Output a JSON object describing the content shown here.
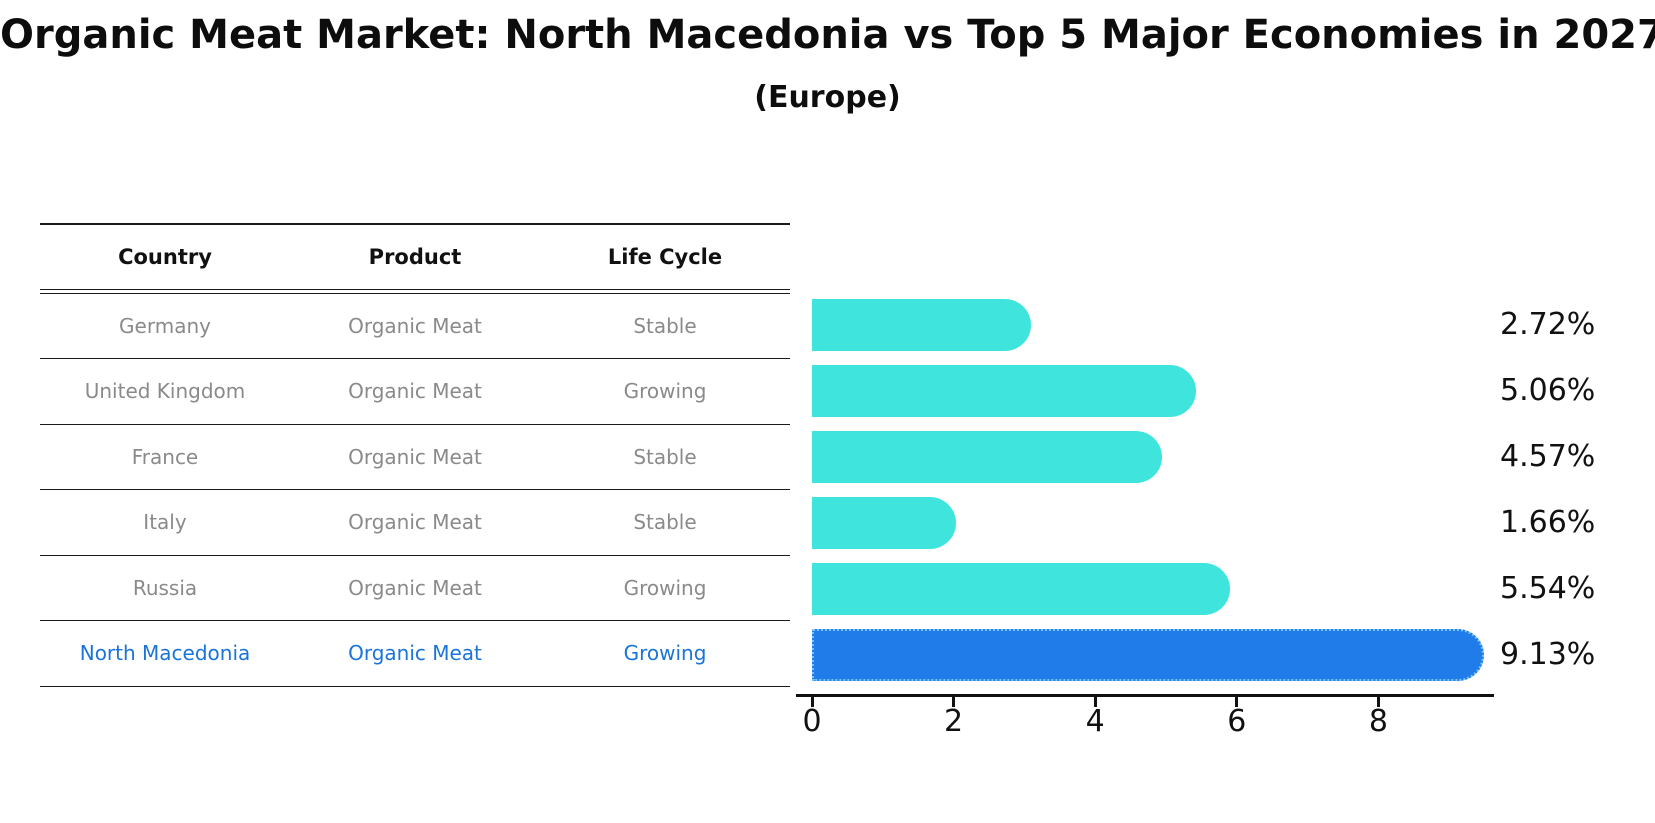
{
  "header": {
    "title": "Organic Meat Market: North Macedonia vs Top 5 Major Economies in 2027",
    "subtitle": "(Europe)"
  },
  "table": {
    "headers": [
      "Country",
      "Product",
      "Life Cycle"
    ],
    "rows": [
      {
        "country": "Germany",
        "product": "Organic Meat",
        "life_cycle": "Stable",
        "highlighted": false
      },
      {
        "country": "United Kingdom",
        "product": "Organic Meat",
        "life_cycle": "Growing",
        "highlighted": false
      },
      {
        "country": "France",
        "product": "Organic Meat",
        "life_cycle": "Stable",
        "highlighted": false
      },
      {
        "country": "Italy",
        "product": "Organic Meat",
        "life_cycle": "Stable",
        "highlighted": false
      },
      {
        "country": "Russia",
        "product": "Organic Meat",
        "life_cycle": "Growing",
        "highlighted": false
      },
      {
        "country": "North Macedonia",
        "product": "Organic Meat",
        "life_cycle": "Growing",
        "highlighted": true
      }
    ]
  },
  "chart_data": {
    "type": "bar",
    "orientation": "horizontal",
    "title": "Organic Meat Market: North Macedonia vs Top 5 Major Economies in 2027",
    "subtitle": "(Europe)",
    "categories": [
      "Germany",
      "United Kingdom",
      "France",
      "Italy",
      "Russia",
      "North Macedonia"
    ],
    "values": [
      2.72,
      5.06,
      4.57,
      1.66,
      5.54,
      9.13
    ],
    "value_labels": [
      "2.72%",
      "5.06%",
      "4.57%",
      "1.66%",
      "5.54%",
      "9.13%"
    ],
    "x_ticks": [
      "0",
      "2",
      "4",
      "6",
      "8"
    ],
    "x_tick_values": [
      0,
      2,
      4,
      6,
      8
    ],
    "xlim": [
      0,
      9.63
    ],
    "highlight_index": 5,
    "grid": false,
    "legend_position": "none"
  },
  "colors": {
    "bar": "#3fe4dd",
    "bar_highlight": "#1f7ce8",
    "bar_highlight_edge": "#7cc4f8",
    "highlight_text": "#1b74d8",
    "row_text": "#8a8a8a",
    "heading_text": "#111111",
    "line": "#1a1a1a"
  }
}
